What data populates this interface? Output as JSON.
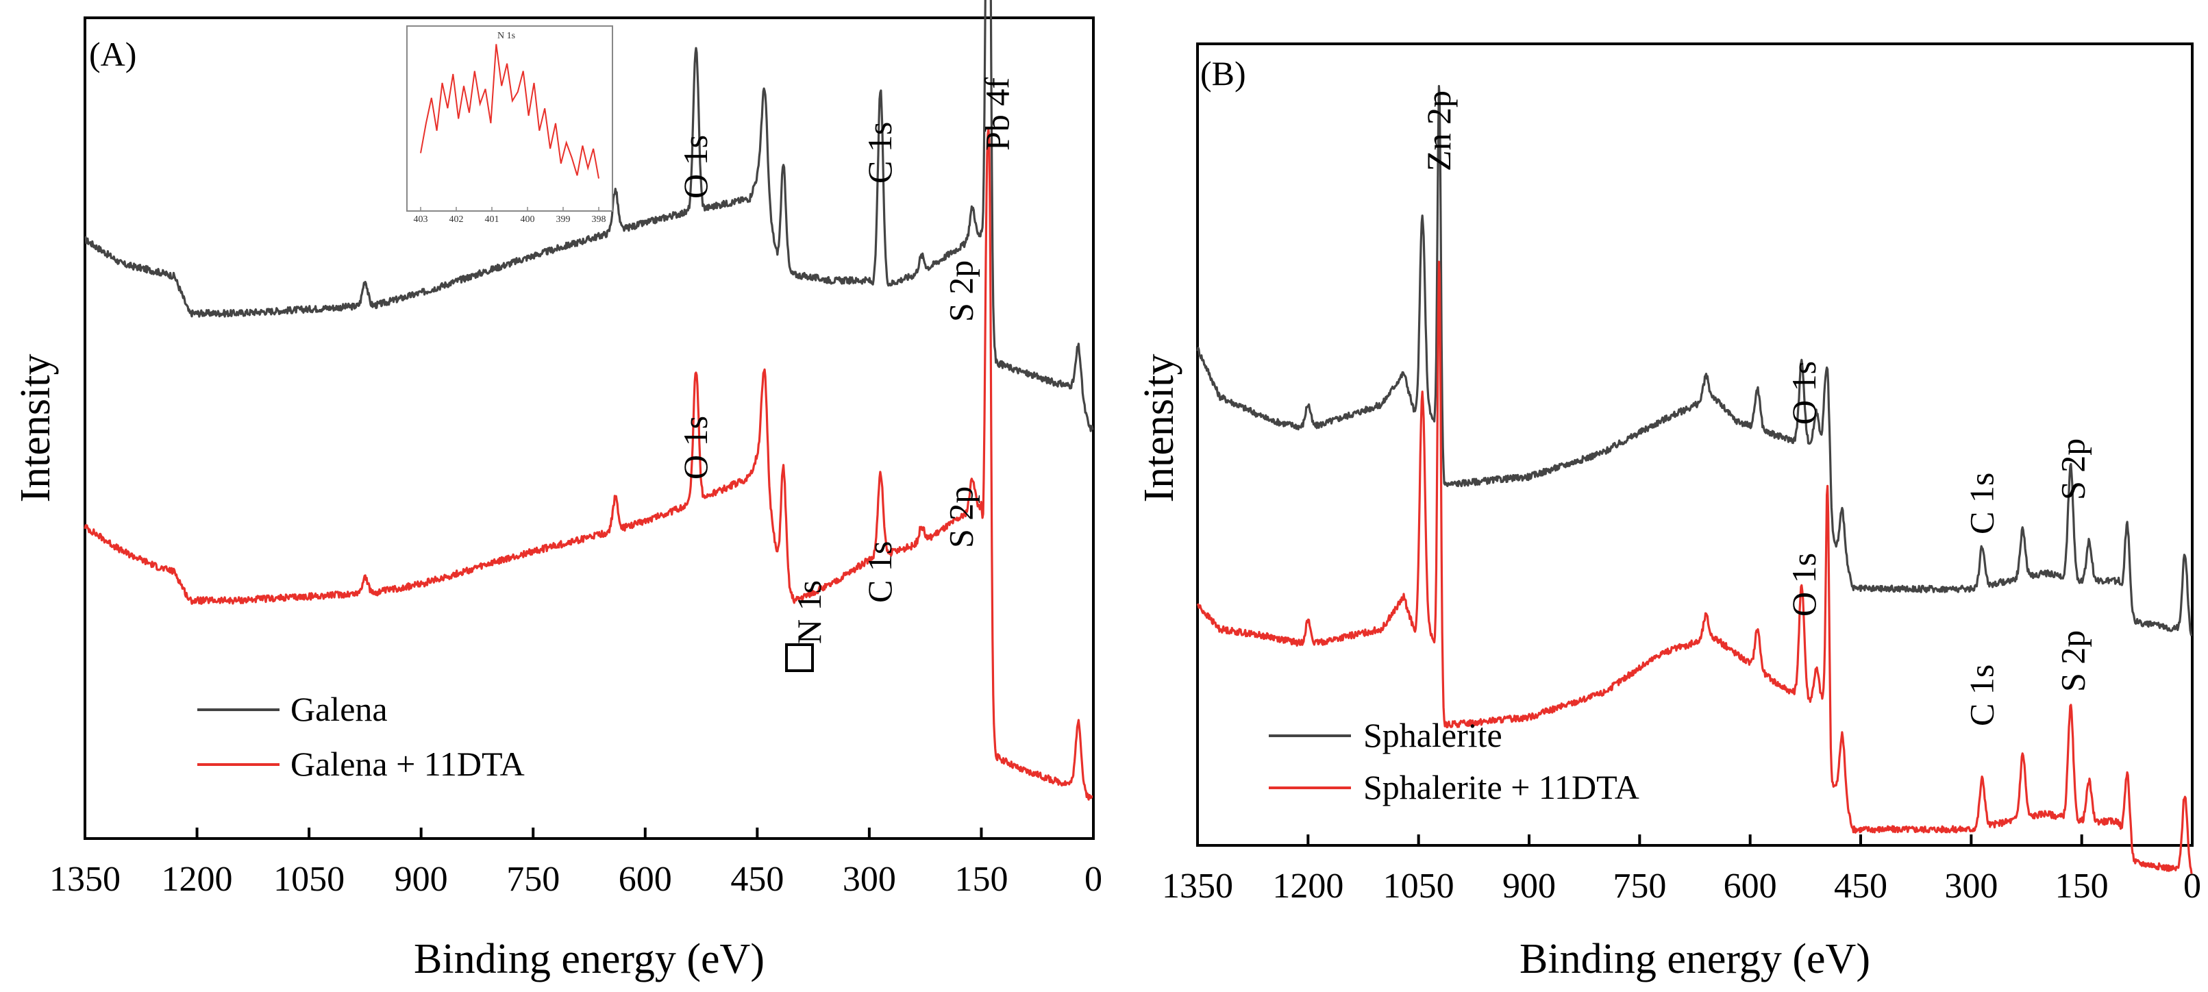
{
  "chart_data": [
    {
      "panel": "(A)",
      "type": "line",
      "xlabel": "Binding energy (eV)",
      "ylabel": "Intensity",
      "xlim": [
        1350,
        0
      ],
      "xticks": [
        1350,
        1200,
        1050,
        900,
        750,
        600,
        450,
        300,
        150,
        0
      ],
      "x_reversed": true,
      "legend": [
        "Galena",
        "Galena + 11DTA"
      ],
      "legend_position": "bottom-left",
      "colors": {
        "Galena": "#444444",
        "Galena + 11DTA": "#e8302a"
      },
      "series": [
        {
          "name": "Galena",
          "baseline": [
            [
              1350,
              0.73
            ],
            [
              1300,
              0.7
            ],
            [
              1250,
              0.69
            ],
            [
              1230,
              0.685
            ],
            [
              1210,
              0.64
            ],
            [
              1150,
              0.64
            ],
            [
              1050,
              0.645
            ],
            [
              960,
              0.65
            ],
            [
              900,
              0.665
            ],
            [
              750,
              0.71
            ],
            [
              640,
              0.74
            ],
            [
              560,
              0.76
            ],
            [
              460,
              0.78
            ],
            [
              445,
              0.82
            ],
            [
              420,
              0.69
            ],
            [
              350,
              0.68
            ],
            [
              300,
              0.68
            ],
            [
              290,
              0.67
            ],
            [
              230,
              0.69
            ],
            [
              180,
              0.72
            ],
            [
              150,
              0.735
            ],
            [
              140,
              0.65
            ],
            [
              130,
              0.58
            ],
            [
              100,
              0.57
            ],
            [
              50,
              0.555
            ],
            [
              20,
              0.55
            ],
            [
              5,
              0.5
            ],
            [
              0,
              0.5
            ]
          ],
          "peaks": [
            [
              975,
              0.03
            ],
            [
              640,
              0.05
            ],
            [
              532,
              0.2
            ],
            [
              440,
              0.12
            ],
            [
              415,
              0.13
            ],
            [
              285,
              0.24
            ],
            [
              230,
              0.02
            ],
            [
              162,
              0.04
            ],
            [
              139,
              0.52
            ],
            [
              143,
              0.42
            ],
            [
              20,
              0.05
            ]
          ]
        },
        {
          "name": "Galena + 11DTA",
          "baseline": [
            [
              1350,
              0.38
            ],
            [
              1300,
              0.35
            ],
            [
              1250,
              0.33
            ],
            [
              1230,
              0.325
            ],
            [
              1210,
              0.29
            ],
            [
              1150,
              0.29
            ],
            [
              1050,
              0.295
            ],
            [
              960,
              0.3
            ],
            [
              900,
              0.31
            ],
            [
              750,
              0.35
            ],
            [
              640,
              0.375
            ],
            [
              560,
              0.4
            ],
            [
              460,
              0.44
            ],
            [
              445,
              0.48
            ],
            [
              420,
              0.32
            ],
            [
              400,
              0.29
            ],
            [
              350,
              0.31
            ],
            [
              300,
              0.34
            ],
            [
              230,
              0.36
            ],
            [
              180,
              0.39
            ],
            [
              150,
              0.405
            ],
            [
              140,
              0.17
            ],
            [
              130,
              0.1
            ],
            [
              100,
              0.085
            ],
            [
              50,
              0.07
            ],
            [
              20,
              0.065
            ],
            [
              5,
              0.05
            ],
            [
              0,
              0.05
            ]
          ],
          "peaks": [
            [
              975,
              0.02
            ],
            [
              640,
              0.04
            ],
            [
              532,
              0.16
            ],
            [
              440,
              0.12
            ],
            [
              415,
              0.14
            ],
            [
              285,
              0.1
            ],
            [
              230,
              0.02
            ],
            [
              162,
              0.04
            ],
            [
              139,
              0.57
            ],
            [
              143,
              0.44
            ],
            [
              20,
              0.08
            ]
          ]
        }
      ],
      "annotations": [
        {
          "text": "O 1s",
          "x": 532,
          "series": "Galena"
        },
        {
          "text": "C 1s",
          "x": 285,
          "series": "Galena"
        },
        {
          "text": "S 2p",
          "x": 162,
          "series": "Galena"
        },
        {
          "text": "Pb 4f",
          "x": 139,
          "series": "Galena"
        },
        {
          "text": "O 1s",
          "x": 532,
          "series": "Galena + 11DTA"
        },
        {
          "text": "N 1s",
          "x": 400,
          "series": "Galena + 11DTA"
        },
        {
          "text": "C 1s",
          "x": 285,
          "series": "Galena + 11DTA"
        },
        {
          "text": "S 2p",
          "x": 162,
          "series": "Galena + 11DTA"
        }
      ],
      "inset": {
        "title": "N 1s",
        "type": "line",
        "xticks": [
          403,
          402,
          401,
          400,
          399,
          398
        ],
        "xlim": [
          403,
          398
        ],
        "values": [
          0.25,
          0.45,
          0.62,
          0.4,
          0.72,
          0.55,
          0.78,
          0.48,
          0.7,
          0.52,
          0.8,
          0.58,
          0.68,
          0.45,
          0.98,
          0.7,
          0.85,
          0.6,
          0.66,
          0.8,
          0.5,
          0.72,
          0.4,
          0.55,
          0.28,
          0.45,
          0.18,
          0.32,
          0.22,
          0.1,
          0.3,
          0.15,
          0.28,
          0.08
        ]
      }
    },
    {
      "panel": "(B)",
      "type": "line",
      "xlabel": "Binding energy (eV)",
      "ylabel": "Intensity",
      "xlim": [
        1350,
        0
      ],
      "xticks": [
        1350,
        1200,
        1050,
        900,
        750,
        600,
        450,
        300,
        150,
        0
      ],
      "x_reversed": true,
      "legend": [
        "Sphalerite",
        "Sphalerite + 11DTA"
      ],
      "legend_position": "bottom-left",
      "colors": {
        "Sphalerite": "#444444",
        "Sphalerite + 11DTA": "#e8302a"
      },
      "series": [
        {
          "name": "Sphalerite",
          "baseline": [
            [
              1350,
              0.62
            ],
            [
              1320,
              0.56
            ],
            [
              1250,
              0.53
            ],
            [
              1200,
              0.52
            ],
            [
              1100,
              0.55
            ],
            [
              1070,
              0.59
            ],
            [
              1050,
              0.52
            ],
            [
              1040,
              0.55
            ],
            [
              1025,
              0.52
            ],
            [
              1015,
              0.45
            ],
            [
              900,
              0.46
            ],
            [
              800,
              0.49
            ],
            [
              720,
              0.53
            ],
            [
              650,
              0.56
            ],
            [
              620,
              0.53
            ],
            [
              560,
              0.51
            ],
            [
              520,
              0.5
            ],
            [
              500,
              0.5
            ],
            [
              490,
              0.38
            ],
            [
              470,
              0.35
            ],
            [
              460,
              0.32
            ],
            [
              400,
              0.32
            ],
            [
              300,
              0.32
            ],
            [
              200,
              0.34
            ],
            [
              150,
              0.33
            ],
            [
              100,
              0.33
            ],
            [
              85,
              0.28
            ],
            [
              20,
              0.27
            ],
            [
              5,
              0.26
            ],
            [
              0,
              0.26
            ]
          ],
          "peaks": [
            [
              1045,
              0.25
            ],
            [
              1022,
              0.45
            ],
            [
              1200,
              0.03
            ],
            [
              660,
              0.03
            ],
            [
              590,
              0.05
            ],
            [
              530,
              0.1
            ],
            [
              510,
              0.04
            ],
            [
              495,
              0.15
            ],
            [
              475,
              0.06
            ],
            [
              285,
              0.05
            ],
            [
              230,
              0.06
            ],
            [
              165,
              0.14
            ],
            [
              140,
              0.05
            ],
            [
              88,
              0.11
            ],
            [
              10,
              0.1
            ]
          ]
        },
        {
          "name": "Sphalerite + 11DTA",
          "baseline": [
            [
              1350,
              0.3
            ],
            [
              1320,
              0.27
            ],
            [
              1250,
              0.26
            ],
            [
              1200,
              0.25
            ],
            [
              1100,
              0.27
            ],
            [
              1070,
              0.31
            ],
            [
              1050,
              0.25
            ],
            [
              1040,
              0.28
            ],
            [
              1025,
              0.24
            ],
            [
              1015,
              0.15
            ],
            [
              900,
              0.16
            ],
            [
              800,
              0.19
            ],
            [
              720,
              0.24
            ],
            [
              650,
              0.26
            ],
            [
              620,
              0.24
            ],
            [
              560,
              0.2
            ],
            [
              520,
              0.18
            ],
            [
              500,
              0.18
            ],
            [
              490,
              0.08
            ],
            [
              470,
              0.05
            ],
            [
              460,
              0.02
            ],
            [
              400,
              0.02
            ],
            [
              300,
              0.02
            ],
            [
              200,
              0.04
            ],
            [
              150,
              0.03
            ],
            [
              100,
              0.03
            ],
            [
              85,
              -0.02
            ],
            [
              20,
              -0.03
            ],
            [
              5,
              -0.04
            ],
            [
              0,
              -0.04
            ]
          ],
          "peaks": [
            [
              1045,
              0.3
            ],
            [
              1022,
              0.52
            ],
            [
              1200,
              0.03
            ],
            [
              660,
              0.03
            ],
            [
              590,
              0.05
            ],
            [
              530,
              0.14
            ],
            [
              510,
              0.04
            ],
            [
              495,
              0.32
            ],
            [
              475,
              0.08
            ],
            [
              285,
              0.06
            ],
            [
              230,
              0.08
            ],
            [
              165,
              0.14
            ],
            [
              140,
              0.05
            ],
            [
              88,
              0.1
            ],
            [
              10,
              0.1
            ]
          ]
        }
      ],
      "annotations": [
        {
          "text": "Zn 2p",
          "x": 1022,
          "series": "Sphalerite"
        },
        {
          "text": "O 1s",
          "x": 530,
          "series": "Sphalerite"
        },
        {
          "text": "C 1s",
          "x": 285,
          "series": "Sphalerite"
        },
        {
          "text": "S 2p",
          "x": 165,
          "series": "Sphalerite"
        },
        {
          "text": "O 1s",
          "x": 530,
          "series": "Sphalerite + 11DTA"
        },
        {
          "text": "C 1s",
          "x": 285,
          "series": "Sphalerite + 11DTA"
        },
        {
          "text": "S 2p",
          "x": 165,
          "series": "Sphalerite + 11DTA"
        }
      ]
    }
  ]
}
